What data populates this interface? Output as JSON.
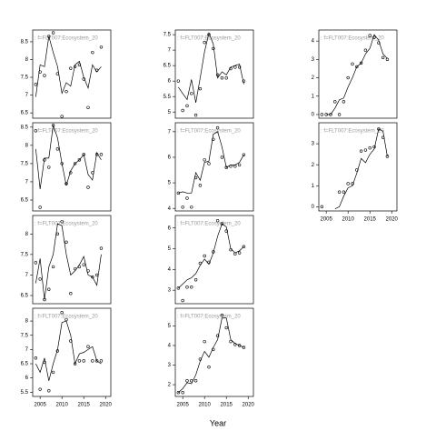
{
  "x_label": "Year",
  "chart_data": [
    {
      "type": "line",
      "title": ": f=FLT007:Ecosystem_20",
      "x": [
        2004,
        2005,
        2006,
        2007,
        2008,
        2009,
        2010,
        2011,
        2012,
        2013,
        2014,
        2015,
        2016,
        2017,
        2018,
        2019
      ],
      "xlim": [
        2003.3,
        2021.2
      ],
      "ylim": [
        6.35,
        8.83
      ],
      "yticks": [
        6.5,
        7,
        7.5,
        8,
        8.5
      ],
      "series": [
        {
          "style": "points",
          "values": [
            7.3,
            7.65,
            7.55,
            8.65,
            8.75,
            7.6,
            6.4,
            7.1,
            7.75,
            7.8,
            7.85,
            7.45,
            6.65,
            8.2,
            7.7,
            8.35
          ]
        },
        {
          "style": "line",
          "values": [
            6.95,
            7.85,
            7.8,
            8.65,
            8.2,
            7.8,
            7.05,
            7.35,
            7.25,
            7.85,
            7.95,
            7.5,
            7.2,
            7.85,
            7.65,
            7.8
          ]
        }
      ]
    },
    {
      "type": "line",
      "title": ": f=FLT007:Ecosystem_20",
      "x": [
        2004,
        2005,
        2006,
        2007,
        2008,
        2009,
        2010,
        2011,
        2012,
        2013,
        2014,
        2015,
        2016,
        2017,
        2018,
        2019
      ],
      "xlim": [
        2003.3,
        2021.2
      ],
      "ylim": [
        6.2,
        8.62
      ],
      "yticks": [
        6.5,
        7,
        7.5,
        8,
        8.5
      ],
      "series": [
        {
          "style": "points",
          "values": [
            8.4,
            6.3,
            7.6,
            7.4,
            8.55,
            7.9,
            7.5,
            6.95,
            7.25,
            7.5,
            7.6,
            7.75,
            6.85,
            7.25,
            7.75,
            7.75
          ]
        },
        {
          "style": "line",
          "values": [
            7.9,
            6.8,
            7.65,
            7.65,
            8.55,
            8.2,
            7.5,
            6.9,
            7.3,
            7.5,
            7.6,
            7.75,
            7.2,
            7.05,
            7.8,
            7.6
          ]
        }
      ]
    },
    {
      "type": "line",
      "title": ": f=FLT007:Ecosystem_20",
      "x": [
        2004,
        2005,
        2006,
        2007,
        2008,
        2009,
        2010,
        2011,
        2012,
        2013,
        2014,
        2015,
        2016,
        2017,
        2018,
        2019
      ],
      "xlim": [
        2003.3,
        2021.2
      ],
      "ylim": [
        6.3,
        8.45
      ],
      "yticks": [
        6.5,
        7,
        7.5,
        8
      ],
      "series": [
        {
          "style": "points",
          "values": [
            7.3,
            6.9,
            6.4,
            6.65,
            7.2,
            8.0,
            8.3,
            7.8,
            6.55,
            7.15,
            7.2,
            7.25,
            7.1,
            6.95,
            7.0,
            7.65
          ]
        },
        {
          "style": "line",
          "values": [
            6.8,
            7.4,
            6.4,
            7.2,
            7.5,
            8.25,
            8.2,
            7.5,
            7.0,
            7.1,
            7.25,
            7.45,
            7.0,
            6.95,
            6.75,
            7.5
          ]
        }
      ]
    },
    {
      "type": "line",
      "title": ": f=FLT007:Ecosystem_20",
      "x": [
        2004,
        2005,
        2006,
        2007,
        2008,
        2009,
        2010,
        2011,
        2012,
        2013,
        2014,
        2015,
        2016,
        2017,
        2018,
        2019
      ],
      "xlim": [
        2003.3,
        2021.2
      ],
      "xticks": [
        2005,
        2010,
        2015,
        2020
      ],
      "ylim": [
        5.35,
        8.45
      ],
      "yticks": [
        5.5,
        6,
        6.5,
        7,
        7.5,
        8
      ],
      "series": [
        {
          "style": "points",
          "values": [
            6.7,
            5.6,
            6.55,
            5.55,
            6.2,
            6.95,
            8.3,
            8.05,
            7.3,
            6.5,
            6.6,
            6.6,
            7.1,
            6.6,
            6.6,
            6.6
          ]
        },
        {
          "style": "line",
          "values": [
            6.5,
            6.2,
            6.7,
            5.9,
            6.5,
            7.0,
            7.95,
            8.0,
            7.5,
            6.5,
            6.85,
            6.9,
            7.0,
            7.1,
            6.6,
            6.5
          ]
        }
      ]
    },
    {
      "type": "line",
      "title": ": f=FLT007:Ecosystem_20",
      "x": [
        2004,
        2005,
        2006,
        2007,
        2008,
        2009,
        2010,
        2011,
        2012,
        2013,
        2014,
        2015,
        2016,
        2017,
        2018,
        2019
      ],
      "xlim": [
        2003.3,
        2021.2
      ],
      "ylim": [
        4.8,
        7.65
      ],
      "yticks": [
        5,
        5.5,
        6,
        6.5,
        7,
        7.5
      ],
      "series": [
        {
          "style": "points",
          "values": [
            6.0,
            5.05,
            5.2,
            5.6,
            4.9,
            5.75,
            7.25,
            7.5,
            7.05,
            6.2,
            6.1,
            6.1,
            6.4,
            6.45,
            6.45,
            6.0
          ]
        },
        {
          "style": "line",
          "values": [
            5.8,
            5.6,
            5.4,
            6.05,
            5.3,
            6.1,
            6.95,
            7.55,
            7.2,
            6.1,
            6.3,
            6.2,
            6.45,
            6.5,
            6.55,
            5.9
          ]
        }
      ]
    },
    {
      "type": "line",
      "title": ": f=FLT007:Ecosystem_20",
      "x": [
        2004,
        2005,
        2006,
        2007,
        2008,
        2009,
        2010,
        2011,
        2012,
        2013,
        2014,
        2015,
        2016,
        2017,
        2018,
        2019
      ],
      "xlim": [
        2003.3,
        2021.2
      ],
      "ylim": [
        3.9,
        7.35
      ],
      "yticks": [
        4,
        5,
        6,
        7
      ],
      "series": [
        {
          "style": "points",
          "values": [
            4.6,
            4.05,
            4.4,
            4.05,
            5.2,
            4.9,
            5.9,
            5.75,
            6.7,
            7.15,
            6.0,
            5.6,
            5.65,
            5.65,
            5.7,
            6.1
          ]
        },
        {
          "style": "line",
          "values": [
            4.6,
            4.65,
            4.6,
            4.6,
            5.4,
            5.1,
            5.8,
            5.85,
            6.9,
            7.0,
            6.4,
            5.6,
            5.7,
            5.7,
            5.8,
            6.1
          ]
        }
      ]
    },
    {
      "type": "line",
      "title": ": f=FLT007:Ecosystem_20",
      "x": [
        2004,
        2005,
        2006,
        2007,
        2008,
        2009,
        2010,
        2011,
        2012,
        2013,
        2014,
        2015,
        2016,
        2017,
        2018,
        2019
      ],
      "xlim": [
        2003.3,
        2021.2
      ],
      "ylim": [
        2.35,
        6.6
      ],
      "yticks": [
        3,
        4,
        5,
        6
      ],
      "series": [
        {
          "style": "points",
          "values": [
            3.1,
            2.5,
            3.15,
            3.15,
            3.5,
            4.3,
            4.65,
            4.35,
            4.85,
            6.35,
            6.2,
            5.85,
            4.95,
            4.75,
            4.8,
            5.1
          ]
        },
        {
          "style": "line",
          "values": [
            3.1,
            3.3,
            3.5,
            3.6,
            3.8,
            4.2,
            4.5,
            4.25,
            4.8,
            5.6,
            6.2,
            6.05,
            5.0,
            4.8,
            4.9,
            5.1
          ]
        }
      ]
    },
    {
      "type": "line",
      "title": ": f=FLT007:Ecosystem_20",
      "x": [
        2004,
        2005,
        2006,
        2007,
        2008,
        2009,
        2010,
        2011,
        2012,
        2013,
        2014,
        2015,
        2016,
        2017,
        2018,
        2019
      ],
      "xlim": [
        2003.3,
        2021.2
      ],
      "xticks": [
        2005,
        2010,
        2015,
        2020
      ],
      "ylim": [
        1.4,
        5.9
      ],
      "yticks": [
        2,
        3,
        4,
        5
      ],
      "series": [
        {
          "style": "points",
          "values": [
            1.6,
            1.6,
            2.2,
            2.2,
            2.2,
            3.3,
            4.2,
            2.9,
            3.8,
            4.5,
            5.55,
            4.9,
            4.2,
            4.05,
            4.0,
            3.9
          ]
        },
        {
          "style": "line",
          "values": [
            1.6,
            1.8,
            2.1,
            2.05,
            2.5,
            3.2,
            3.7,
            3.4,
            3.9,
            4.3,
            5.4,
            5.4,
            4.3,
            4.1,
            4.0,
            3.9
          ]
        }
      ]
    },
    {
      "type": "line",
      "title": ": f=FLT007:Ecosystem_20",
      "x": [
        2004,
        2005,
        2006,
        2007,
        2008,
        2009,
        2010,
        2011,
        2012,
        2013,
        2014,
        2015,
        2016,
        2017,
        2018,
        2019
      ],
      "xlim": [
        2003.3,
        2021.2
      ],
      "ylim": [
        -0.2,
        4.6
      ],
      "yticks": [
        0,
        1,
        2,
        3,
        4
      ],
      "series": [
        {
          "style": "points",
          "values": [
            0,
            0,
            0,
            0.7,
            0,
            0.7,
            2.0,
            2.75,
            2.6,
            2.8,
            3.5,
            4.3,
            4.2,
            3.9,
            3.1,
            3.0
          ]
        },
        {
          "style": "line",
          "values": [
            null,
            0,
            0,
            0.35,
            0.8,
            0.9,
            1.5,
            2.0,
            2.6,
            2.8,
            3.3,
            3.6,
            4.35,
            4.05,
            3.3,
            3.05
          ]
        }
      ]
    },
    {
      "type": "line",
      "title": ": f=FLT007:Ecosystem_20",
      "x": [
        2004,
        2005,
        2006,
        2007,
        2008,
        2009,
        2010,
        2011,
        2012,
        2013,
        2014,
        2015,
        2016,
        2017,
        2018,
        2019
      ],
      "xlim": [
        2003.3,
        2021.2
      ],
      "xticks": [
        2005,
        2010,
        2015,
        2020
      ],
      "ylim": [
        -0.2,
        4.0
      ],
      "yticks": [
        0,
        1,
        2,
        3
      ],
      "series": [
        {
          "style": "points",
          "values": [
            0,
            null,
            null,
            null,
            0.7,
            0.7,
            1.1,
            1.1,
            1.75,
            2.65,
            2.7,
            2.8,
            2.85,
            3.7,
            3.3,
            2.4
          ]
        },
        {
          "style": "line",
          "values": [
            null,
            null,
            null,
            -0.1,
            0.0,
            0.5,
            0.9,
            1.0,
            1.6,
            2.3,
            2.1,
            2.5,
            2.75,
            3.7,
            3.6,
            2.4
          ]
        }
      ]
    }
  ]
}
